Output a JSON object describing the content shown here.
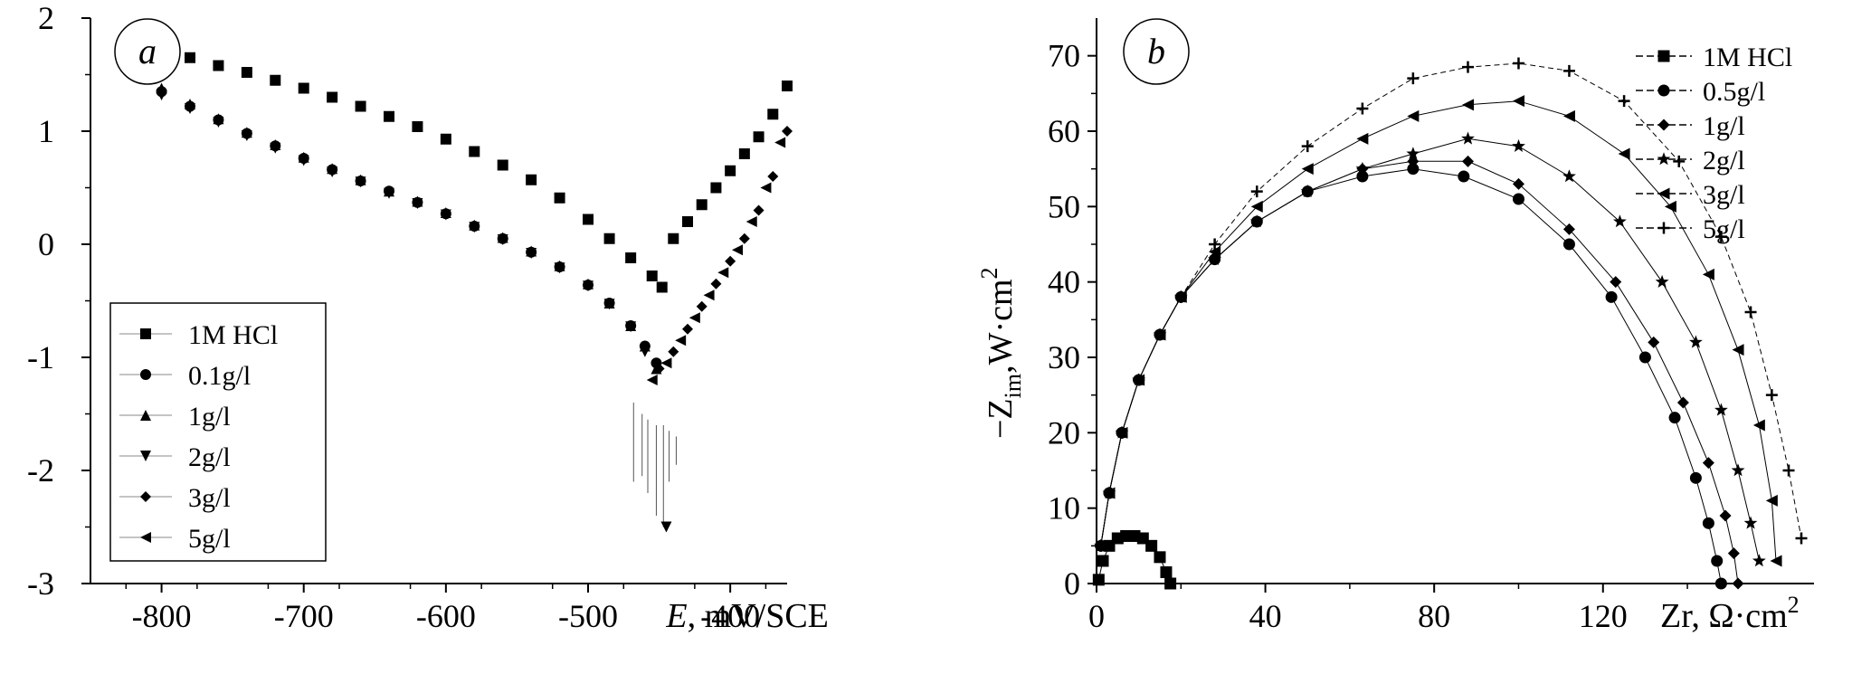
{
  "chart_data": [
    {
      "type": "scatter",
      "panel_label": "a",
      "xlabel_var": "E",
      "xlabel_unit": ", mV/SCE",
      "ylabel": "",
      "xlim": [
        -850,
        -360
      ],
      "ylim": [
        -3,
        2
      ],
      "x_ticks": [
        "-800",
        "-700",
        "-600",
        "-500",
        "-400"
      ],
      "x_tick_values": [
        -800,
        -700,
        -600,
        -500,
        -400
      ],
      "y_ticks": [
        "2",
        "1",
        "0",
        "-1",
        "-2",
        "-3"
      ],
      "y_tick_values": [
        2,
        1,
        0,
        -1,
        -2,
        -3
      ],
      "legend_position": "lower-left",
      "series": [
        {
          "name": "1M HCl",
          "marker": "square",
          "x": [
            -800,
            -780,
            -760,
            -740,
            -720,
            -700,
            -680,
            -660,
            -640,
            -620,
            -600,
            -580,
            -560,
            -540,
            -520,
            -500,
            -485,
            -470,
            -455,
            -448,
            -440,
            -430,
            -420,
            -410,
            -400,
            -390,
            -380,
            -370,
            -360
          ],
          "y": [
            1.72,
            1.65,
            1.58,
            1.52,
            1.45,
            1.38,
            1.3,
            1.22,
            1.13,
            1.04,
            0.93,
            0.82,
            0.7,
            0.57,
            0.41,
            0.22,
            0.05,
            -0.12,
            -0.28,
            -0.38,
            0.05,
            0.2,
            0.35,
            0.5,
            0.65,
            0.8,
            0.95,
            1.15,
            1.4
          ]
        },
        {
          "name": "0.1g/l",
          "marker": "circle",
          "x": [
            -800,
            -780,
            -760,
            -740,
            -720,
            -700,
            -680,
            -660,
            -640,
            -620,
            -600,
            -580,
            -560,
            -540,
            -520,
            -500,
            -485,
            -470,
            -460,
            -452
          ],
          "y": [
            1.35,
            1.22,
            1.1,
            0.98,
            0.87,
            0.76,
            0.66,
            0.56,
            0.47,
            0.37,
            0.27,
            0.16,
            0.05,
            -0.07,
            -0.2,
            -0.36,
            -0.52,
            -0.72,
            -0.9,
            -1.05
          ]
        },
        {
          "name": "1g/l",
          "marker": "triangle-up",
          "x": [
            -800,
            -780,
            -760,
            -740,
            -720,
            -700,
            -680,
            -660,
            -640,
            -620,
            -600,
            -580,
            -560,
            -540,
            -520,
            -500,
            -485,
            -470,
            -460,
            -452
          ],
          "y": [
            1.38,
            1.24,
            1.11,
            0.99,
            0.88,
            0.77,
            0.67,
            0.57,
            0.47,
            0.38,
            0.28,
            0.17,
            0.06,
            -0.06,
            -0.19,
            -0.35,
            -0.52,
            -0.72,
            -0.9,
            -1.1
          ]
        },
        {
          "name": "2g/l",
          "marker": "triangle-down",
          "x": [
            -800,
            -780,
            -760,
            -740,
            -720,
            -700,
            -680,
            -660,
            -640,
            -620,
            -600,
            -580,
            -560,
            -540,
            -520,
            -500,
            -485,
            -470,
            -460,
            -445
          ],
          "y": [
            1.32,
            1.2,
            1.08,
            0.96,
            0.85,
            0.74,
            0.64,
            0.55,
            0.45,
            0.36,
            0.26,
            0.15,
            0.04,
            -0.08,
            -0.21,
            -0.37,
            -0.53,
            -0.73,
            -0.95,
            -2.5
          ]
        },
        {
          "name": "3g/l",
          "marker": "diamond",
          "x": [
            -450,
            -440,
            -430,
            -420,
            -410,
            -400,
            -390,
            -380,
            -370,
            -360
          ],
          "y": [
            -1.1,
            -0.95,
            -0.75,
            -0.55,
            -0.35,
            -0.15,
            0.05,
            0.3,
            0.6,
            1.0
          ]
        },
        {
          "name": "5g/l",
          "marker": "triangle-left",
          "x": [
            -455,
            -445,
            -435,
            -425,
            -415,
            -405,
            -395,
            -385,
            -375,
            -365
          ],
          "y": [
            -1.2,
            -1.05,
            -0.85,
            -0.65,
            -0.45,
            -0.25,
            -0.05,
            0.2,
            0.5,
            0.9
          ]
        }
      ]
    },
    {
      "type": "scatter",
      "panel_label": "b",
      "xlabel": "Zr, Ω·cm",
      "xlabel_sup": "2",
      "ylabel_prefix": "−Z",
      "ylabel_sub": "im",
      "ylabel_mid": ",W·cm",
      "ylabel_sup": "2",
      "xlim": [
        0,
        170
      ],
      "ylim": [
        0,
        75
      ],
      "x_ticks": [
        "0",
        "40",
        "80",
        "120"
      ],
      "x_tick_values": [
        0,
        40,
        80,
        120
      ],
      "y_ticks": [
        "70",
        "60",
        "50",
        "40",
        "30",
        "20",
        "10",
        "0"
      ],
      "y_tick_values": [
        70,
        60,
        50,
        40,
        30,
        20,
        10,
        0
      ],
      "legend_position": "top-right",
      "series": [
        {
          "name": "1M HCl",
          "marker": "square",
          "x": [
            0.5,
            1.5,
            3,
            5,
            7,
            9,
            11,
            13,
            15,
            16.5,
            17.5
          ],
          "y": [
            0.5,
            3,
            5,
            6,
            6.3,
            6.3,
            6,
            5,
            3.5,
            1.5,
            0
          ]
        },
        {
          "name": "0.5g/l",
          "marker": "circle",
          "x": [
            1,
            3,
            6,
            10,
            15,
            20,
            28,
            38,
            50,
            63,
            75,
            87,
            100,
            112,
            122,
            130,
            137,
            142,
            145,
            147,
            148
          ],
          "y": [
            5,
            12,
            20,
            27,
            33,
            38,
            43,
            48,
            52,
            54,
            55,
            54,
            51,
            45,
            38,
            30,
            22,
            14,
            8,
            3,
            0
          ]
        },
        {
          "name": "1g/l",
          "marker": "diamond",
          "x": [
            1,
            3,
            6,
            10,
            15,
            20,
            28,
            38,
            50,
            63,
            75,
            88,
            100,
            112,
            123,
            132,
            139,
            145,
            149,
            151,
            152
          ],
          "y": [
            5,
            12,
            20,
            27,
            33,
            38,
            43,
            48,
            52,
            55,
            56,
            56,
            53,
            47,
            40,
            32,
            24,
            16,
            9,
            4,
            0
          ]
        },
        {
          "name": "2g/l",
          "marker": "star",
          "x": [
            1,
            3,
            6,
            10,
            15,
            20,
            28,
            38,
            50,
            63,
            75,
            88,
            100,
            112,
            124,
            134,
            142,
            148,
            152,
            155,
            157
          ],
          "y": [
            5,
            12,
            20,
            27,
            33,
            38,
            43,
            48,
            52,
            55,
            57,
            59,
            58,
            54,
            48,
            40,
            32,
            23,
            15,
            8,
            3
          ]
        },
        {
          "name": "3g/l",
          "marker": "triangle-left",
          "x": [
            1,
            3,
            6,
            10,
            15,
            20,
            28,
            38,
            50,
            63,
            75,
            88,
            100,
            112,
            125,
            136,
            145,
            152,
            157,
            160,
            161
          ],
          "y": [
            5,
            12,
            20,
            27,
            33,
            38,
            44,
            50,
            55,
            59,
            62,
            63.5,
            64,
            62,
            57,
            50,
            41,
            31,
            21,
            11,
            3
          ]
        },
        {
          "name": "5g/l",
          "marker": "plus",
          "x": [
            1,
            3,
            6,
            10,
            15,
            20,
            28,
            38,
            50,
            63,
            75,
            88,
            100,
            112,
            125,
            138,
            148,
            155,
            160,
            164,
            167
          ],
          "y": [
            5,
            12,
            20,
            27,
            33,
            38,
            45,
            52,
            58,
            63,
            67,
            68.5,
            69,
            68,
            64,
            56,
            46,
            36,
            25,
            15,
            6
          ]
        }
      ]
    }
  ]
}
